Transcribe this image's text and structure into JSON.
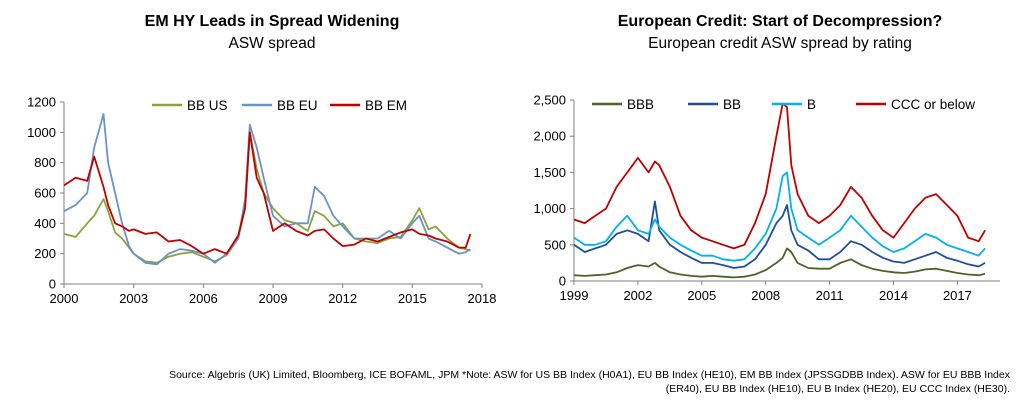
{
  "charts": [
    {
      "title": "EM HY Leads in Spread Widening",
      "subtitle": "ASW spread"
    },
    {
      "title": "European Credit: Start of Decompression?",
      "subtitle": "European credit ASW spread by rating"
    }
  ],
  "footer": {
    "line1": "Source: Algebris (UK) Limited, Bloomberg, ICE BOFAML, JPM *Note:  ASW for US BB Index (H0A1), EU BB Index (HE10), EM BB Index (JPSSGDBB Index). ASW for EU BBB Index",
    "line2": "(ER40), EU BB Index (HE10), EU B Index (HE20), EU CCC Index (HE30)."
  },
  "chart_data": [
    {
      "type": "line",
      "title": "EM HY Leads in Spread Widening",
      "subtitle": "ASW spread",
      "xlabel": "",
      "ylabel": "",
      "xlim": [
        2000,
        2018
      ],
      "ylim": [
        0,
        1200
      ],
      "x_ticks": [
        2000,
        2003,
        2006,
        2009,
        2012,
        2015,
        2018
      ],
      "y_ticks": [
        0,
        200,
        400,
        600,
        800,
        1000,
        1200
      ],
      "x_tick_labels": [
        "2000",
        "2003",
        "2006",
        "2009",
        "2012",
        "2015",
        "2018"
      ],
      "y_tick_labels": [
        "0",
        "200",
        "400",
        "600",
        "800",
        "1000",
        "1200"
      ],
      "grid": false,
      "legend": "top",
      "x": [
        2000.0,
        2000.5,
        2001.0,
        2001.3,
        2001.7,
        2001.9,
        2002.2,
        2002.5,
        2002.8,
        2003.0,
        2003.5,
        2004.0,
        2004.5,
        2005.0,
        2005.5,
        2006.0,
        2006.5,
        2007.0,
        2007.5,
        2007.8,
        2008.0,
        2008.3,
        2008.6,
        2009.0,
        2009.5,
        2010.0,
        2010.5,
        2010.8,
        2011.2,
        2011.6,
        2012.0,
        2012.5,
        2013.0,
        2013.5,
        2014.0,
        2014.5,
        2015.0,
        2015.3,
        2015.7,
        2016.0,
        2016.5,
        2017.0,
        2017.3,
        2017.5
      ],
      "series": [
        {
          "name": "BB US",
          "color": "#8aa33c",
          "values": [
            330,
            310,
            400,
            450,
            560,
            480,
            340,
            300,
            240,
            200,
            150,
            140,
            180,
            200,
            210,
            180,
            150,
            190,
            300,
            500,
            1000,
            760,
            600,
            500,
            420,
            400,
            350,
            480,
            450,
            380,
            400,
            300,
            280,
            270,
            300,
            310,
            420,
            500,
            360,
            380,
            300,
            240,
            230,
            220
          ]
        },
        {
          "name": "BB EU",
          "color": "#6b93c6",
          "values": [
            480,
            520,
            600,
            900,
            1120,
            800,
            600,
            400,
            250,
            200,
            140,
            130,
            200,
            230,
            220,
            200,
            140,
            200,
            300,
            560,
            1050,
            900,
            700,
            450,
            380,
            400,
            400,
            640,
            580,
            450,
            380,
            300,
            300,
            300,
            350,
            300,
            400,
            450,
            300,
            280,
            240,
            200,
            210,
            230
          ]
        },
        {
          "name": "BB EM",
          "color": "#c00000",
          "values": [
            650,
            700,
            680,
            840,
            640,
            520,
            400,
            380,
            350,
            360,
            330,
            340,
            280,
            290,
            250,
            200,
            230,
            200,
            320,
            500,
            1000,
            700,
            600,
            350,
            400,
            350,
            320,
            350,
            360,
            300,
            250,
            260,
            300,
            280,
            310,
            340,
            360,
            330,
            320,
            300,
            280,
            240,
            240,
            330
          ]
        }
      ]
    },
    {
      "type": "line",
      "title": "European Credit: Start of Decompression?",
      "subtitle": "European credit ASW spread by rating",
      "xlabel": "",
      "ylabel": "",
      "xlim": [
        1999,
        2019
      ],
      "ylim": [
        0,
        2500
      ],
      "x_ticks": [
        1999,
        2002,
        2005,
        2008,
        2011,
        2014,
        2017
      ],
      "y_ticks": [
        0,
        500,
        1000,
        1500,
        2000,
        2500
      ],
      "x_tick_labels": [
        "1999",
        "2002",
        "2005",
        "2008",
        "2011",
        "2014",
        "2017"
      ],
      "y_tick_labels": [
        "0",
        "500",
        "1,000",
        "1,500",
        "2,000",
        "2,500"
      ],
      "grid": false,
      "legend": "top",
      "x": [
        1999.0,
        1999.5,
        2000.0,
        2000.5,
        2001.0,
        2001.5,
        2002.0,
        2002.5,
        2002.8,
        2003.0,
        2003.5,
        2004.0,
        2004.5,
        2005.0,
        2005.5,
        2006.0,
        2006.5,
        2007.0,
        2007.5,
        2008.0,
        2008.5,
        2008.8,
        2009.0,
        2009.2,
        2009.5,
        2010.0,
        2010.5,
        2011.0,
        2011.5,
        2012.0,
        2012.5,
        2013.0,
        2013.5,
        2014.0,
        2014.5,
        2015.0,
        2015.5,
        2016.0,
        2016.5,
        2017.0,
        2017.5,
        2018.0,
        2018.3
      ],
      "series": [
        {
          "name": "BBB",
          "color": "#4f6228",
          "values": [
            80,
            70,
            80,
            90,
            120,
            180,
            220,
            200,
            250,
            200,
            120,
            90,
            70,
            60,
            70,
            60,
            50,
            60,
            90,
            150,
            250,
            320,
            450,
            400,
            250,
            180,
            170,
            170,
            250,
            300,
            220,
            170,
            140,
            120,
            110,
            130,
            160,
            170,
            140,
            110,
            90,
            80,
            100
          ]
        },
        {
          "name": "BB",
          "color": "#1f4e9b",
          "values": [
            500,
            400,
            450,
            500,
            650,
            700,
            650,
            550,
            1100,
            700,
            500,
            400,
            320,
            250,
            250,
            220,
            180,
            200,
            300,
            500,
            800,
            900,
            1050,
            700,
            500,
            420,
            300,
            300,
            400,
            550,
            500,
            400,
            320,
            270,
            250,
            300,
            350,
            400,
            320,
            280,
            230,
            200,
            250
          ]
        },
        {
          "name": "B",
          "color": "#00b0f0",
          "values": [
            600,
            500,
            500,
            550,
            750,
            900,
            700,
            650,
            850,
            750,
            600,
            500,
            420,
            350,
            350,
            300,
            280,
            300,
            450,
            650,
            1000,
            1450,
            1500,
            1000,
            700,
            600,
            500,
            600,
            700,
            900,
            750,
            600,
            480,
            400,
            450,
            550,
            650,
            600,
            500,
            450,
            400,
            350,
            450
          ]
        },
        {
          "name": "CCC or below",
          "color": "#c00000",
          "values": [
            850,
            800,
            900,
            1000,
            1300,
            1500,
            1700,
            1500,
            1650,
            1600,
            1300,
            900,
            700,
            600,
            550,
            500,
            450,
            500,
            800,
            1200,
            2000,
            2450,
            2400,
            1600,
            1200,
            900,
            800,
            900,
            1050,
            1300,
            1150,
            900,
            700,
            600,
            800,
            1000,
            1150,
            1200,
            1050,
            900,
            600,
            550,
            700
          ]
        }
      ]
    }
  ]
}
